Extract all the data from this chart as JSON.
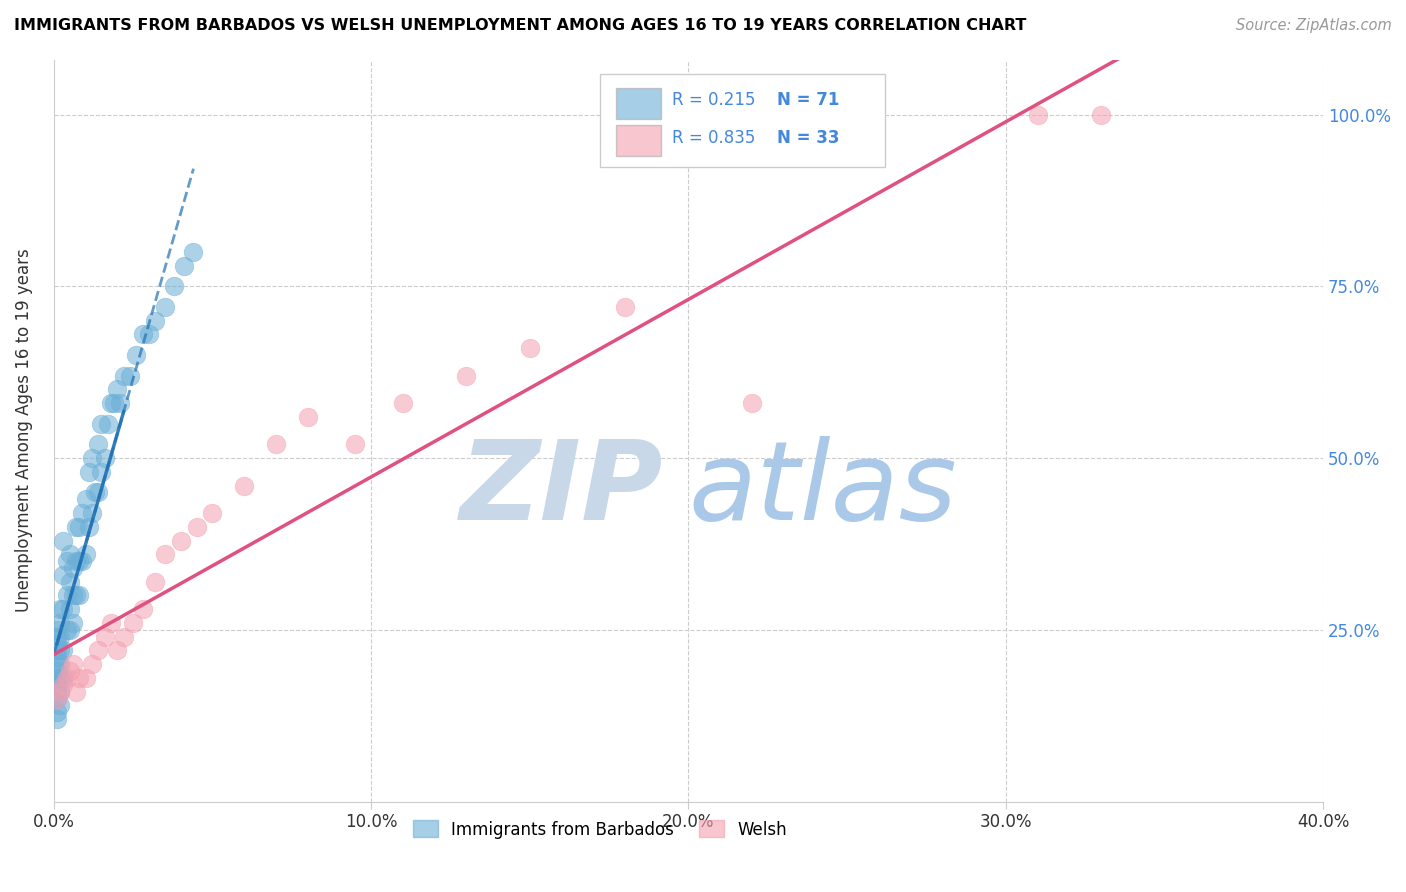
{
  "title": "IMMIGRANTS FROM BARBADOS VS WELSH UNEMPLOYMENT AMONG AGES 16 TO 19 YEARS CORRELATION CHART",
  "source": "Source: ZipAtlas.com",
  "ylabel": "Unemployment Among Ages 16 to 19 years",
  "xlim": [
    0.0,
    0.4
  ],
  "ylim": [
    0.0,
    1.08
  ],
  "xtick_labels": [
    "0.0%",
    "10.0%",
    "20.0%",
    "30.0%",
    "40.0%"
  ],
  "xtick_values": [
    0.0,
    0.1,
    0.2,
    0.3,
    0.4
  ],
  "ytick_values": [
    0.25,
    0.5,
    0.75,
    1.0
  ],
  "right_ytick_labels": [
    "25.0%",
    "50.0%",
    "75.0%",
    "100.0%"
  ],
  "blue_color": "#6baed6",
  "pink_color": "#f4a0b0",
  "blue_line_color": "#2171b5",
  "pink_line_color": "#e05080",
  "right_axis_color": "#4488dd",
  "legend_box_color": "#aaaaaa",
  "watermark_zip_color": "#c8d8e8",
  "watermark_atlas_color": "#aac8e8",
  "blue_N": 71,
  "pink_N": 33,
  "blue_R": 0.215,
  "pink_R": 0.835,
  "blue_scatter_x": [
    0.001,
    0.001,
    0.001,
    0.001,
    0.001,
    0.001,
    0.001,
    0.001,
    0.001,
    0.001,
    0.001,
    0.001,
    0.001,
    0.002,
    0.002,
    0.002,
    0.002,
    0.002,
    0.002,
    0.002,
    0.002,
    0.003,
    0.003,
    0.003,
    0.003,
    0.003,
    0.004,
    0.004,
    0.004,
    0.005,
    0.005,
    0.005,
    0.005,
    0.006,
    0.006,
    0.006,
    0.007,
    0.007,
    0.007,
    0.008,
    0.008,
    0.008,
    0.009,
    0.009,
    0.01,
    0.01,
    0.011,
    0.011,
    0.012,
    0.012,
    0.013,
    0.014,
    0.014,
    0.015,
    0.015,
    0.016,
    0.017,
    0.018,
    0.019,
    0.02,
    0.021,
    0.022,
    0.024,
    0.026,
    0.028,
    0.03,
    0.032,
    0.035,
    0.038,
    0.041,
    0.044
  ],
  "blue_scatter_y": [
    0.16,
    0.17,
    0.18,
    0.19,
    0.2,
    0.21,
    0.22,
    0.23,
    0.12,
    0.13,
    0.15,
    0.24,
    0.25,
    0.14,
    0.16,
    0.18,
    0.2,
    0.22,
    0.24,
    0.26,
    0.28,
    0.18,
    0.22,
    0.28,
    0.33,
    0.38,
    0.25,
    0.3,
    0.35,
    0.25,
    0.28,
    0.32,
    0.36,
    0.26,
    0.3,
    0.34,
    0.3,
    0.35,
    0.4,
    0.3,
    0.35,
    0.4,
    0.35,
    0.42,
    0.36,
    0.44,
    0.4,
    0.48,
    0.42,
    0.5,
    0.45,
    0.45,
    0.52,
    0.48,
    0.55,
    0.5,
    0.55,
    0.58,
    0.58,
    0.6,
    0.58,
    0.62,
    0.62,
    0.65,
    0.68,
    0.68,
    0.7,
    0.72,
    0.75,
    0.78,
    0.8
  ],
  "pink_scatter_x": [
    0.001,
    0.002,
    0.003,
    0.004,
    0.005,
    0.006,
    0.007,
    0.008,
    0.01,
    0.012,
    0.014,
    0.016,
    0.018,
    0.02,
    0.022,
    0.025,
    0.028,
    0.032,
    0.035,
    0.04,
    0.045,
    0.05,
    0.06,
    0.07,
    0.08,
    0.095,
    0.11,
    0.13,
    0.15,
    0.18,
    0.22,
    0.31,
    0.33
  ],
  "pink_scatter_y": [
    0.15,
    0.16,
    0.17,
    0.18,
    0.19,
    0.2,
    0.16,
    0.18,
    0.18,
    0.2,
    0.22,
    0.24,
    0.26,
    0.22,
    0.24,
    0.26,
    0.28,
    0.32,
    0.36,
    0.38,
    0.4,
    0.42,
    0.46,
    0.52,
    0.56,
    0.52,
    0.58,
    0.62,
    0.66,
    0.72,
    0.58,
    1.0,
    1.0
  ]
}
